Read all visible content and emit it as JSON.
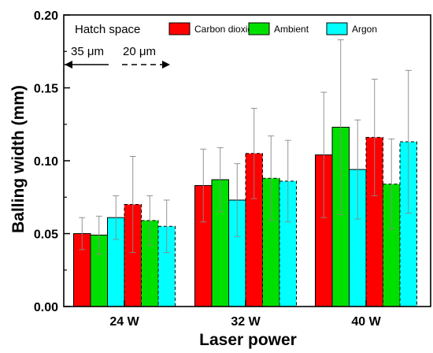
{
  "chart_data": {
    "type": "bar",
    "title": "",
    "xlabel": "Laser power",
    "ylabel": "Balling width (mm)",
    "ylim": [
      0,
      0.2
    ],
    "yticks": [
      "0.00",
      "0.05",
      "0.10",
      "0.15",
      "0.20"
    ],
    "categories": [
      "24 W",
      "32 W",
      "40 W"
    ],
    "hatch_spacings": [
      {
        "label": "35 μm",
        "line": "solid"
      },
      {
        "label": "20 μm",
        "line": "dashed"
      }
    ],
    "series": [
      {
        "name": "Carbon dioxide",
        "color": "#ff0000",
        "values": {
          "35 μm": [
            0.05,
            0.083,
            0.104
          ],
          "20 μm": [
            0.07,
            0.105,
            0.116
          ]
        },
        "errors": {
          "35 μm": [
            0.011,
            0.025,
            0.043
          ],
          "20 μm": [
            0.033,
            0.031,
            0.04
          ]
        }
      },
      {
        "name": "Ambient",
        "color": "#00e000",
        "values": {
          "35 μm": [
            0.049,
            0.087,
            0.123
          ],
          "20 μm": [
            0.059,
            0.088,
            0.084
          ]
        },
        "errors": {
          "35 μm": [
            0.013,
            0.022,
            0.06
          ],
          "20 μm": [
            0.017,
            0.029,
            0.031
          ]
        }
      },
      {
        "name": "Argon",
        "color": "#00ffff",
        "values": {
          "35 μm": [
            0.061,
            0.073,
            0.094
          ],
          "20 μm": [
            0.055,
            0.086,
            0.113
          ]
        },
        "errors": {
          "35 μm": [
            0.015,
            0.025,
            0.034
          ],
          "20 μm": [
            0.018,
            0.028,
            0.049
          ]
        }
      }
    ],
    "legend_title": "Hatch space",
    "legend_position": "top",
    "grid": false
  }
}
